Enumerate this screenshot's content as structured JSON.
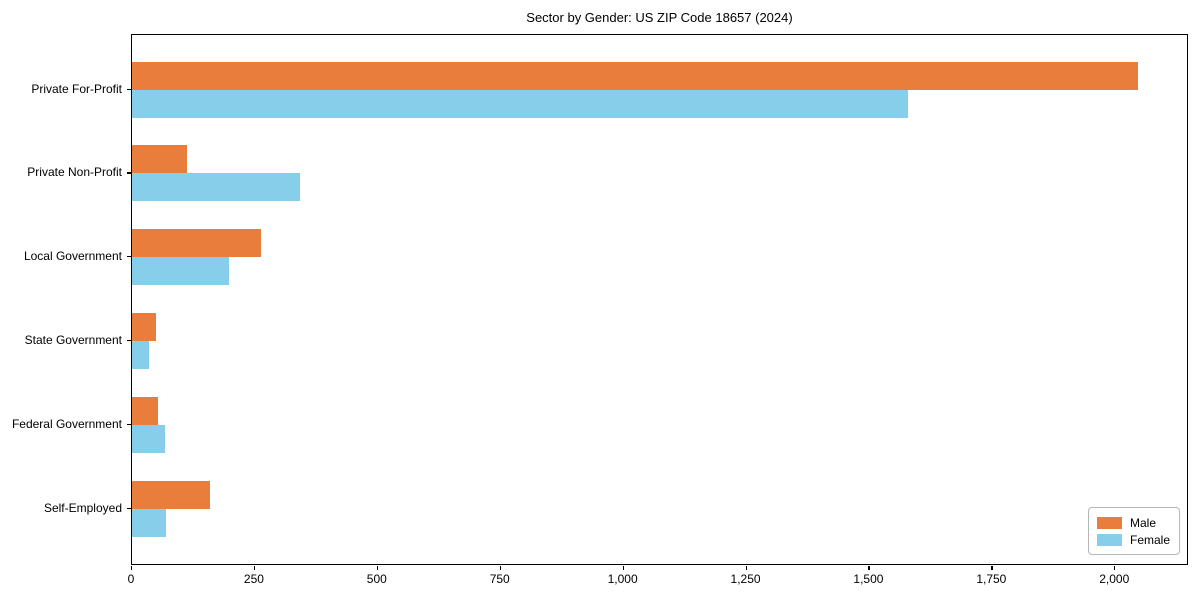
{
  "chart_data": {
    "type": "bar",
    "orientation": "horizontal",
    "title": "Sector by Gender: US ZIP Code 18657 (2024)",
    "categories": [
      "Private For-Profit",
      "Private Non-Profit",
      "Local Government",
      "State Government",
      "Federal Government",
      "Self-Employed"
    ],
    "series": [
      {
        "name": "Male",
        "color": "#e87d3c",
        "values": [
          2047,
          112,
          262,
          49,
          53,
          158
        ]
      },
      {
        "name": "Female",
        "color": "#87ceeb",
        "values": [
          1578,
          342,
          197,
          34,
          68,
          69
        ]
      }
    ],
    "xlabel": "",
    "ylabel": "",
    "xlim": [
      0,
      2150
    ],
    "xticks": [
      0,
      250,
      500,
      750,
      1000,
      1250,
      1500,
      1750,
      2000
    ],
    "xtick_labels": [
      "0",
      "250",
      "500",
      "750",
      "1,000",
      "1,250",
      "1,500",
      "1,750",
      "2,000"
    ],
    "grid": false,
    "legend_position": "lower right"
  }
}
